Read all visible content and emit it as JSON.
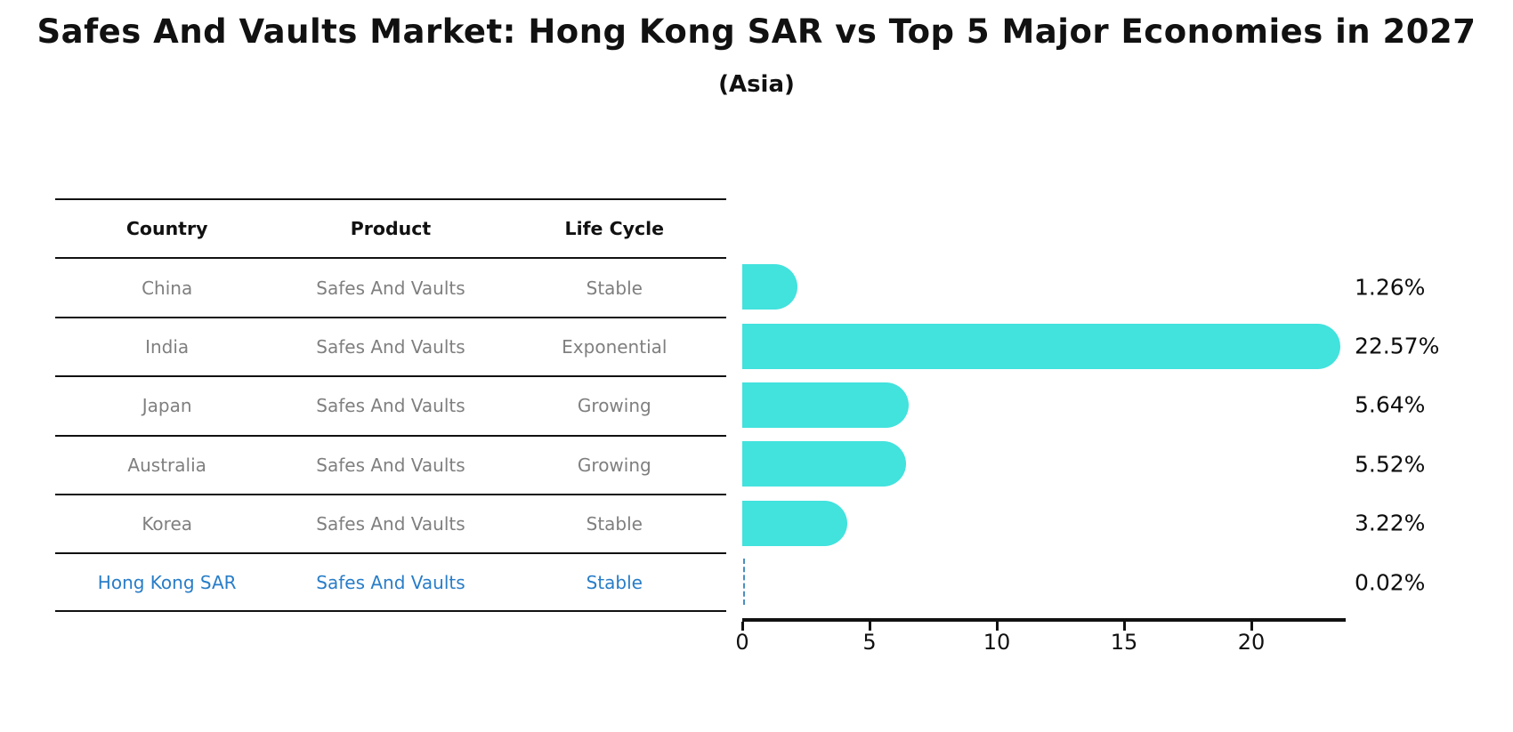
{
  "header": {
    "title": "Safes And Vaults Market: Hong Kong SAR vs Top 5 Major Economies in 2027",
    "subtitle": "(Asia)"
  },
  "table": {
    "headers": [
      "Country",
      "Product",
      "Life Cycle"
    ],
    "rows": [
      {
        "country": "China",
        "product": "Safes And Vaults",
        "life_cycle": "Stable",
        "highlight": false
      },
      {
        "country": "India",
        "product": "Safes And Vaults",
        "life_cycle": "Exponential",
        "highlight": false
      },
      {
        "country": "Japan",
        "product": "Safes And Vaults",
        "life_cycle": "Growing",
        "highlight": false
      },
      {
        "country": "Australia",
        "product": "Safes And Vaults",
        "life_cycle": "Growing",
        "highlight": false
      },
      {
        "country": "Korea",
        "product": "Safes And Vaults",
        "life_cycle": "Stable",
        "highlight": true
      },
      {
        "country": "Hong Kong SAR",
        "product": "Safes And Vaults",
        "life_cycle": "Stable",
        "highlight": true
      }
    ]
  },
  "chart_data": {
    "type": "bar",
    "orientation": "horizontal",
    "categories": [
      "China",
      "India",
      "Japan",
      "Australia",
      "Korea",
      "Hong Kong SAR"
    ],
    "values": [
      1.26,
      22.57,
      5.64,
      5.52,
      3.22,
      0.02
    ],
    "value_labels": [
      "1.26%",
      "22.57%",
      "5.64%",
      "5.52%",
      "3.22%",
      "0.02%"
    ],
    "title": "Safes And Vaults Market: Hong Kong SAR vs Top 5 Major Economies in 2027",
    "subtitle": "(Asia)",
    "xlabel": "",
    "ylabel": "",
    "xticks": [
      0,
      5,
      10,
      15,
      20
    ],
    "xlim": [
      0,
      23.7
    ],
    "grid": false,
    "legend": false,
    "bar_color": "#42e2dd",
    "highlight_dash_color": "#4a8fbf",
    "highlight_text_color": "#287dc8",
    "muted_text_color": "#7f7f7f",
    "axis_color": "#111111"
  }
}
